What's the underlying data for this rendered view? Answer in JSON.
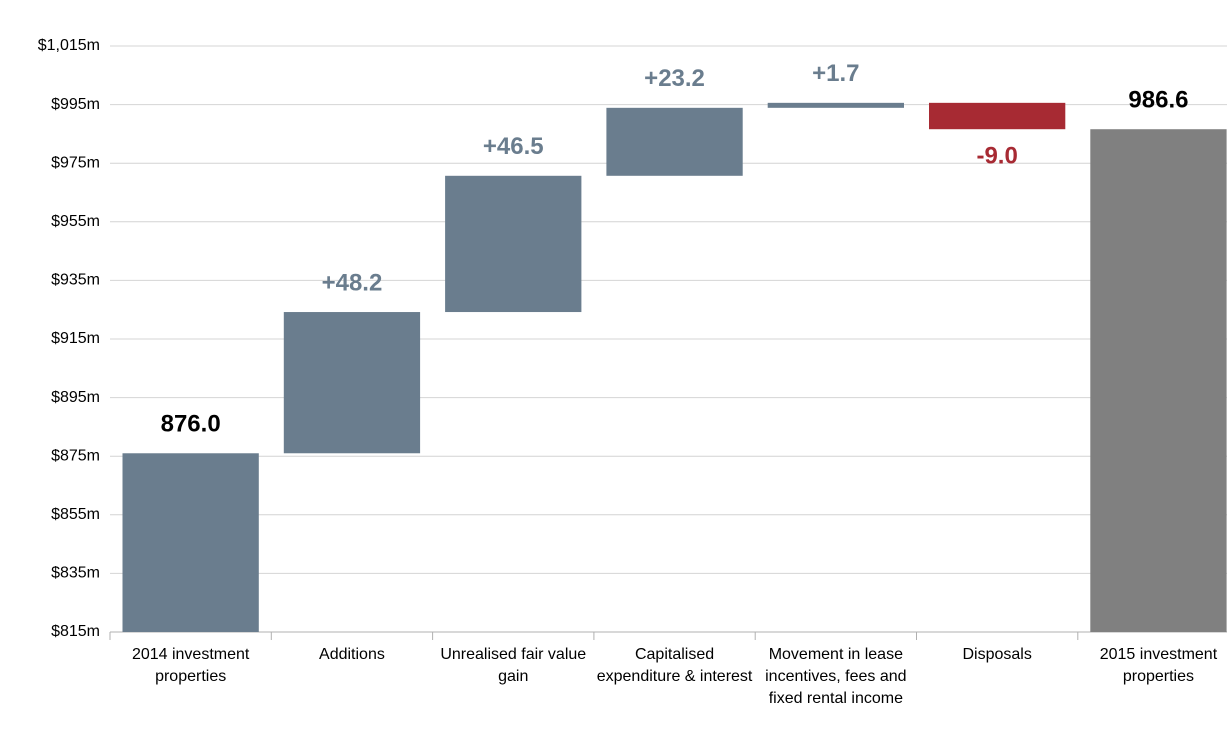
{
  "chart_data": {
    "type": "waterfall",
    "categories": [
      "2014 investment properties",
      "Additions",
      "Unrealised fair value gain",
      "Capitalised expenditure & interest",
      "Movement in lease incentives, fees and fixed rental income",
      "Disposals",
      "2015 investment properties"
    ],
    "measure": [
      "absolute",
      "relative",
      "relative",
      "relative",
      "relative",
      "relative",
      "total"
    ],
    "values": [
      876.0,
      48.2,
      46.5,
      23.2,
      1.7,
      -9.0,
      986.6
    ],
    "value_labels": [
      "876.0",
      "+48.2",
      "+46.5",
      "+23.2",
      "+1.7",
      "-9.0",
      "986.6"
    ],
    "colors": [
      "#6a7d8e",
      "#6a7d8e",
      "#6a7d8e",
      "#6a7d8e",
      "#6a7d8e",
      "#a72a33",
      "#808080"
    ],
    "ylim": [
      815,
      1015
    ],
    "yticks": [
      {
        "value": 815,
        "label": "$815m"
      },
      {
        "value": 835,
        "label": "$835m"
      },
      {
        "value": 855,
        "label": "$855m"
      },
      {
        "value": 875,
        "label": "$875m"
      },
      {
        "value": 895,
        "label": "$895m"
      },
      {
        "value": 915,
        "label": "$915m"
      },
      {
        "value": 935,
        "label": "$935m"
      },
      {
        "value": 955,
        "label": "$955m"
      },
      {
        "value": 975,
        "label": "$975m"
      },
      {
        "value": 995,
        "label": "$995m"
      },
      {
        "value": 1015,
        "label": "$1,015m"
      }
    ],
    "grid": true
  }
}
